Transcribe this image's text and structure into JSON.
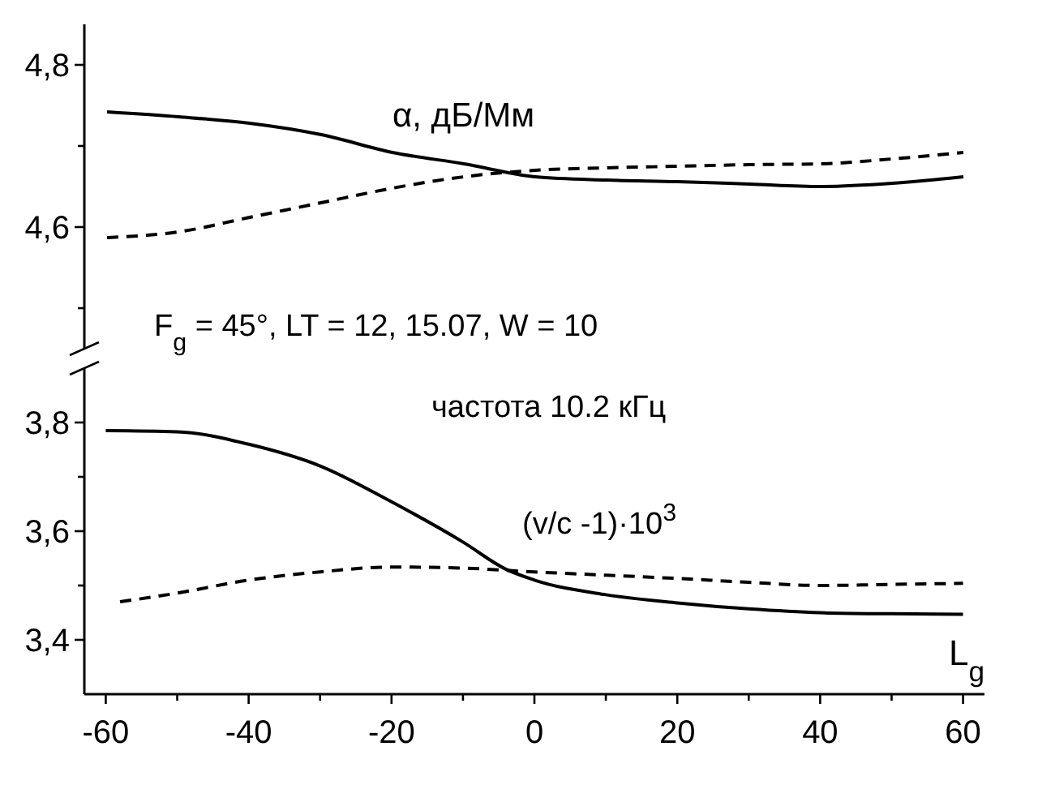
{
  "chart_data": [
    {
      "type": "line",
      "categories": [
        null,
        null,
        null,
        null,
        null,
        null,
        null,
        null,
        null,
        null,
        null,
        null,
        null
      ],
      "ylim": [
        4.45,
        4.85
      ],
      "tick_labels": "y",
      "yticks": [
        {
          "value": 4.5,
          "label": null
        },
        {
          "value": 4.6,
          "label": "4,6"
        },
        {
          "value": 4.7,
          "label": null
        },
        {
          "value": 4.8,
          "label": "4,8"
        }
      ],
      "annotations": [
        "α, дБ/Мм",
        "F$_{g}$ = 45°,  LT = 12,  15.07,  W = 10"
      ],
      "series": [
        {
          "color": "#000000",
          "line_style": "solid",
          "values": [
            4.742,
            4.736,
            4.728,
            4.714,
            4.692,
            4.678,
            4.662,
            4.658,
            4.656,
            4.653,
            4.65,
            4.654,
            4.662
          ]
        },
        {
          "color": "#000000",
          "line_style": "dashed",
          "values": [
            4.587,
            4.594,
            4.612,
            4.63,
            4.648,
            4.662,
            4.67,
            4.673,
            4.675,
            4.677,
            4.678,
            4.684,
            4.692
          ]
        }
      ]
    },
    {
      "type": "line",
      "xlim": [
        -63,
        63
      ],
      "ylim": [
        3.3,
        3.9
      ],
      "xlabel": "L$_{g}$",
      "xticks": [
        -60,
        {
          "value": -50,
          "label": null
        },
        -40,
        {
          "value": -30,
          "label": null
        },
        -20,
        {
          "value": -10,
          "label": null
        },
        0,
        {
          "value": 10,
          "label": null
        },
        20,
        {
          "value": 30,
          "label": null
        },
        40,
        {
          "value": 50,
          "label": null
        },
        60
      ],
      "yticks": [
        {
          "value": 3.4,
          "label": "3,4"
        },
        {
          "value": 3.5,
          "label": null
        },
        {
          "value": 3.6,
          "label": "3,6"
        },
        {
          "value": 3.7,
          "label": null
        },
        {
          "value": 3.8,
          "label": "3,8"
        }
      ],
      "annotations": [
        "частота 10.2 кГц",
        "(v/c -1)·10$^{3}$"
      ],
      "series": [
        {
          "color": "#000000",
          "line_style": "solid",
          "x": [
            -60,
            -50,
            -40,
            -30,
            -20,
            -10,
            -4,
            0,
            10,
            20,
            30,
            40,
            50,
            60
          ],
          "values": [
            3.785,
            3.783,
            3.76,
            3.72,
            3.654,
            3.58,
            3.53,
            3.51,
            3.483,
            3.468,
            3.457,
            3.45,
            3.448,
            3.447
          ]
        },
        {
          "color": "#000000",
          "line_style": "dashed",
          "x": [
            -58,
            -50,
            -40,
            -30,
            -20,
            -10,
            0,
            10,
            20,
            30,
            40,
            50,
            60
          ],
          "values": [
            3.47,
            3.486,
            3.51,
            3.525,
            3.534,
            3.532,
            3.525,
            3.519,
            3.513,
            3.506,
            3.5,
            3.502,
            3.504
          ]
        }
      ]
    }
  ]
}
